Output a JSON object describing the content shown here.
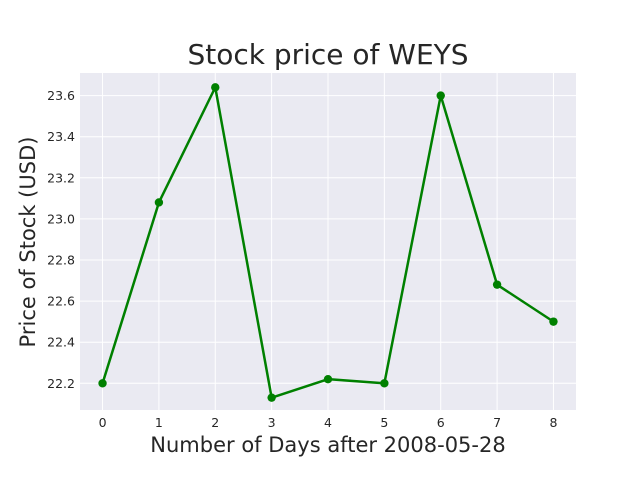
{
  "chart_data": {
    "type": "line",
    "title": "Stock price of WEYS",
    "xlabel": "Number of Days after 2008-05-28",
    "ylabel": "Price of Stock (USD)",
    "x": [
      0,
      1,
      2,
      3,
      4,
      5,
      6,
      7,
      8
    ],
    "series": [
      {
        "values": [
          22.2,
          23.08,
          23.64,
          22.13,
          22.22,
          22.2,
          23.6,
          22.68,
          22.5
        ]
      }
    ],
    "xlim": [
      -0.4,
      8.4
    ],
    "ylim": [
      22.07,
      23.71
    ],
    "xticks": [
      0,
      1,
      2,
      3,
      4,
      5,
      6,
      7,
      8
    ],
    "yticks": [
      22.2,
      22.4,
      22.6,
      22.8,
      23.0,
      23.2,
      23.4,
      23.6
    ],
    "xtick_labels": [
      "0",
      "1",
      "2",
      "3",
      "4",
      "5",
      "6",
      "7",
      "8"
    ],
    "ytick_labels": [
      "22.2",
      "22.4",
      "22.6",
      "22.8",
      "23.0",
      "23.2",
      "23.4",
      "23.6"
    ],
    "grid": true,
    "line_color": "#008000",
    "plot_background": "#eaeaf2",
    "grid_color": "#ffffff"
  }
}
